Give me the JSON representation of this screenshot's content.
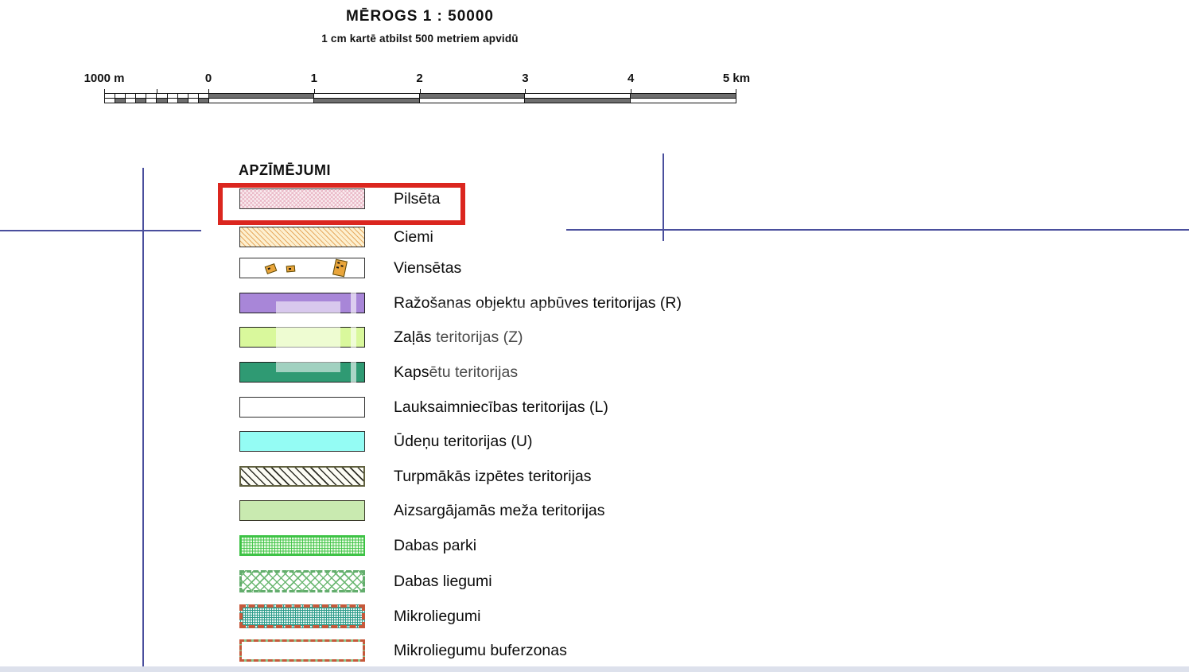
{
  "header": {
    "title": "MĒROGS 1 : 50000",
    "subtitle": "1 cm kartē atbilst 500 metriem apvidū"
  },
  "scalebar": {
    "tick_labels": [
      "1000 m",
      "0",
      "1",
      "2",
      "3",
      "4",
      "5 km"
    ],
    "left_subdivisions": 10,
    "km_segments": 5,
    "bar_fill_color": "#6e6e6e"
  },
  "legend": {
    "heading": "APZĪMĒJUMI",
    "highlight_box_color": "#db261f",
    "items": [
      {
        "label": "Pilsēta",
        "swatch": "pilseta",
        "swatch_color": "#f6e2e8",
        "highlighted": true
      },
      {
        "label": "Ciemi",
        "swatch": "ciemi",
        "swatch_color": "#fcedcd",
        "highlighted": false
      },
      {
        "label": "Viensētas",
        "swatch": "viensetas",
        "swatch_color": "#ffffff",
        "highlighted": false
      },
      {
        "label": "Ražošanas objektu apbūves teritorijas (R)",
        "swatch": "razosanas",
        "swatch_color": "#a886d8",
        "highlighted": false
      },
      {
        "label": "Zaļās teritorijas (Z)",
        "swatch": "zalas",
        "swatch_color": "#d9f89c",
        "highlighted": false
      },
      {
        "label": "Kapsētu teritorijas",
        "swatch": "kapsetu",
        "swatch_color": "#2f9a73",
        "highlighted": false
      },
      {
        "label": "Lauksaimniecības teritorijas (L)",
        "swatch": "lauksaimniecibas",
        "swatch_color": "#ffffff",
        "highlighted": false
      },
      {
        "label": "Ūdeņu teritorijas (U)",
        "swatch": "udenu",
        "swatch_color": "#94fcf4",
        "highlighted": false
      },
      {
        "label": "Turpmākās izpētes teritorijas",
        "swatch": "turpmakas",
        "swatch_color": "#fbfbf2",
        "highlighted": false
      },
      {
        "label": "Aizsargājamās meža teritorijas",
        "swatch": "aizsargajamas",
        "swatch_color": "#c9eab0",
        "highlighted": false
      },
      {
        "label": "Dabas parki",
        "swatch": "dabas-parki",
        "swatch_color": "#3ec846",
        "highlighted": false
      },
      {
        "label": "Dabas liegumi",
        "swatch": "dabas-liegumi",
        "swatch_color": "#6cb873",
        "highlighted": false
      },
      {
        "label": "Mikroliegumi",
        "swatch": "mikroliegumi",
        "swatch_color": "#2f9d8c",
        "highlighted": false
      },
      {
        "label": "Mikroliegumu buferzonas",
        "swatch": "buferzonas",
        "swatch_color": "#86c687",
        "highlighted": false
      }
    ]
  },
  "annotations": {
    "grid_line_color": "#4a4f9d"
  }
}
